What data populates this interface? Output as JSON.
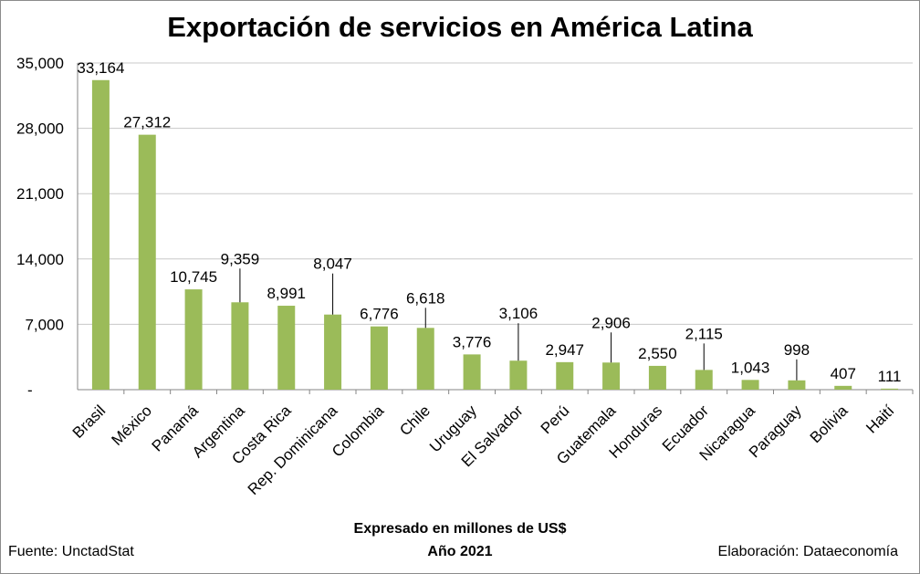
{
  "chart_data": {
    "type": "bar",
    "title": "Exportación de servicios en América Latina",
    "categories": [
      "Brasil",
      "México",
      "Panamá",
      "Argentina",
      "Costa Rica",
      "Rep. Dominicana",
      "Colombia",
      "Chile",
      "Uruguay",
      "El Salvador",
      "Perú",
      "Guatemala",
      "Honduras",
      "Ecuador",
      "Nicaragua",
      "Paraguay",
      "Bolivia",
      "Haití"
    ],
    "values": [
      33164,
      27312,
      10745,
      9359,
      8991,
      8047,
      6776,
      6618,
      3776,
      3106,
      2947,
      2906,
      2550,
      2115,
      1043,
      998,
      407,
      111
    ],
    "value_labels": [
      "33,164",
      "27,312",
      "10,745",
      "9,359",
      "8,991",
      "8,047",
      "6,776",
      "6,618",
      "3,776",
      "3,106",
      "2,947",
      "2,906",
      "2,550",
      "2,115",
      "1,043",
      "998",
      "407",
      "111"
    ],
    "ylim": [
      0,
      35000
    ],
    "yticks": [
      0,
      7000,
      14000,
      21000,
      28000,
      35000
    ],
    "ytick_labels": [
      "-",
      "7,000",
      "14,000",
      "21,000",
      "28,000",
      "35,000"
    ],
    "grid": true,
    "bar_color": "#9bbb59"
  },
  "footer": {
    "unit": "Expresado en millones de US$",
    "year": "Año 2021",
    "source": "Fuente:  UnctadStat",
    "credit": "Elaboración: Dataeconomía"
  }
}
